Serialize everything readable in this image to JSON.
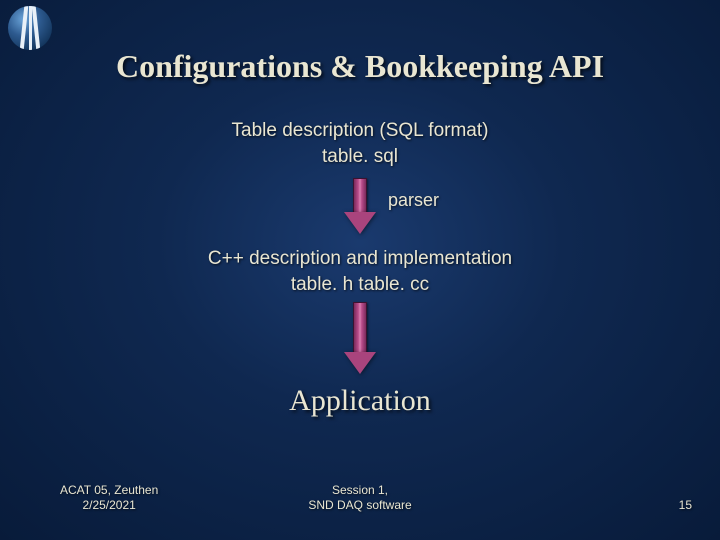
{
  "title": {
    "text": "Configurations & Bookkeeping API",
    "fontsize": 32
  },
  "box1": {
    "line1": "Table description (SQL format)",
    "line2": "table. sql",
    "fontsize": 19
  },
  "box2": {
    "line1": "C++ description and implementation",
    "line2": "table. h table. cc",
    "fontsize": 19
  },
  "parser": {
    "label": "parser",
    "fontsize": 18
  },
  "app": {
    "text": "Application",
    "fontsize": 30
  },
  "arrows": {
    "stem_gradient": [
      "#7a2a5c",
      "#b84c8a",
      "#d97fb1"
    ],
    "head_color": "#a9447d",
    "arrow1": {
      "stem_height": 34
    },
    "arrow2": {
      "stem_height": 50
    }
  },
  "footer": {
    "left_line1": "ACAT 05,  Zeuthen",
    "left_line2": "2/25/2021",
    "center_line1": "Session 1,",
    "center_line2": "SND DAQ software",
    "slide_number": "15",
    "fontsize": 12
  },
  "colors": {
    "bg_center": "#1a3a6e",
    "bg_mid": "#0f2850",
    "bg_edge": "#081b3a",
    "text": "#e9e6d2"
  }
}
